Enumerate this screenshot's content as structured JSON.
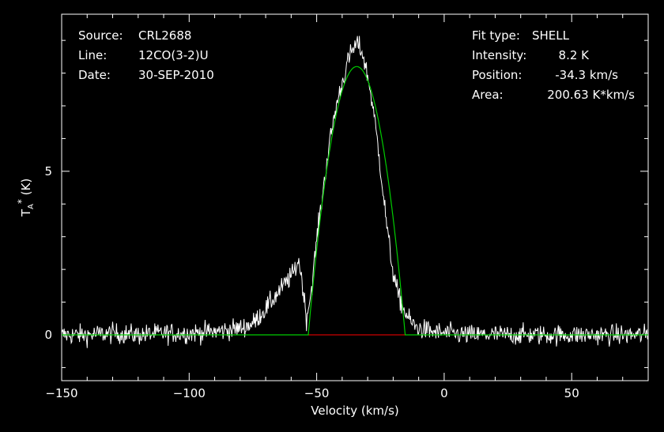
{
  "info_left": {
    "source_label": "Source:",
    "source_value": "CRL2688",
    "line_label": "Line:",
    "line_value": "12CO(3-2)U",
    "date_label": "Date:",
    "date_value": "30-SEP-2010"
  },
  "info_right": {
    "fit_label": "Fit type:",
    "fit_value": "SHELL",
    "intensity_label": "Intensity:",
    "intensity_value": "8.2 K",
    "position_label": "Position:",
    "position_value": "-34.3 km/s",
    "area_label": "Area:",
    "area_value": "200.63 K*km/s"
  },
  "colors": {
    "background": "#000000",
    "spectrum": "#ffffff",
    "fit": "#00cc00",
    "fit_window": "#cc0000",
    "axes": "#ffffff"
  },
  "chart_data": {
    "type": "line",
    "xlabel": "Velocity (km/s)",
    "ylabel": "TA* (K)",
    "xlim": [
      -150,
      80
    ],
    "ylim": [
      -1.4,
      9.8
    ],
    "x_ticks": [
      -150,
      -100,
      -50,
      0,
      50
    ],
    "y_ticks": [
      0,
      5
    ],
    "grid": false,
    "series": [
      {
        "role": "spectrum",
        "x": [
          -150,
          -140,
          -130,
          -120,
          -110,
          -100,
          -90,
          -80,
          -75,
          -70,
          -66,
          -62,
          -59,
          -57,
          -55.5,
          -54,
          -52,
          -50,
          -48,
          -46,
          -44,
          -42,
          -40,
          -38,
          -36,
          -34,
          -32,
          -30,
          -28,
          -26,
          -24,
          -22,
          -20,
          -18,
          -16,
          -14,
          -12,
          -10,
          -5,
          0,
          10,
          20,
          30,
          40,
          50,
          60,
          70,
          80
        ],
        "y": [
          0,
          0,
          0.05,
          0,
          0.05,
          0.05,
          0.1,
          0.2,
          0.35,
          0.8,
          1.2,
          1.6,
          1.9,
          2.3,
          1.5,
          0.5,
          1.4,
          2.9,
          4.1,
          5.3,
          6.3,
          7.1,
          7.7,
          8.3,
          8.7,
          8.9,
          8.6,
          7.9,
          7.0,
          5.8,
          4.4,
          3.0,
          1.9,
          1.2,
          0.8,
          0.5,
          0.3,
          0.2,
          0.1,
          0.05,
          0,
          0,
          0,
          0,
          0,
          0,
          0,
          0
        ]
      },
      {
        "role": "fit",
        "type": "SHELL",
        "intensity": 8.2,
        "position": -34.3,
        "area": 200.63,
        "x": [
          -150,
          -53.3,
          -52.4,
          -51.1,
          -49.4,
          -47.3,
          -44.8,
          -41.9,
          -38.6,
          -34.3,
          -30.0,
          -26.7,
          -23.8,
          -21.3,
          -19.2,
          -17.5,
          -16.2,
          -15.3,
          80
        ],
        "y": [
          0,
          0,
          1.0,
          2.0,
          3.0,
          4.0,
          5.0,
          6.0,
          7.0,
          8.2,
          7.0,
          6.0,
          5.0,
          4.0,
          3.0,
          2.0,
          1.0,
          0,
          0
        ]
      },
      {
        "role": "fit_window",
        "x": [
          -53.3,
          -15.3
        ],
        "y": [
          0,
          0
        ]
      }
    ]
  }
}
